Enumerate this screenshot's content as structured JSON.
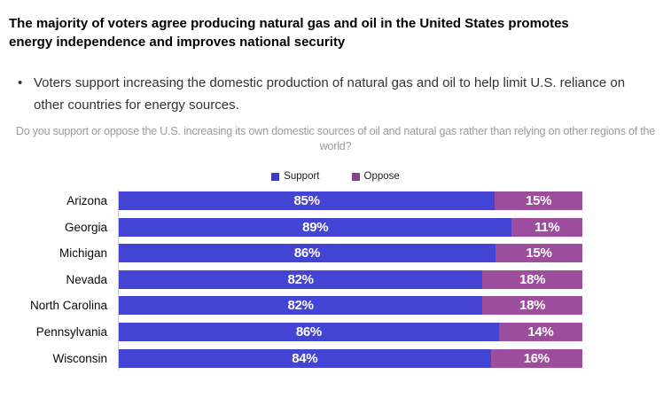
{
  "header": {
    "title": "The majority of voters agree producing natural gas and oil in the United States promotes energy independence and improves national security",
    "bullet_marker": "•",
    "bullet_text": "Voters support increasing the domestic production of natural gas and oil to help limit U.S. reliance on other countries for energy sources.",
    "question": "Do you support or oppose the U.S. increasing its own domestic sources of oil and natural gas rather than relying on other regions of the world?"
  },
  "legend": {
    "items": [
      {
        "label": "Support",
        "color": "#3c3cc4"
      },
      {
        "label": "Oppose",
        "color": "#8c3f90"
      }
    ]
  },
  "chart_data": {
    "type": "bar",
    "orientation": "horizontal",
    "stacked": true,
    "categories": [
      "Arizona",
      "Georgia",
      "Michigan",
      "Nevada",
      "North Carolina",
      "Pennsylvania",
      "Wisconsin"
    ],
    "series": [
      {
        "name": "Support",
        "color": "#4444d4",
        "values": [
          85,
          89,
          86,
          82,
          82,
          86,
          84
        ]
      },
      {
        "name": "Oppose",
        "color": "#9c4e9d",
        "values": [
          15,
          11,
          15,
          18,
          18,
          14,
          16
        ]
      }
    ],
    "value_suffix": "%",
    "xlim": [
      0,
      100
    ],
    "legend_position": "top-center",
    "grid": false,
    "value_label_color": "#ffffff"
  }
}
